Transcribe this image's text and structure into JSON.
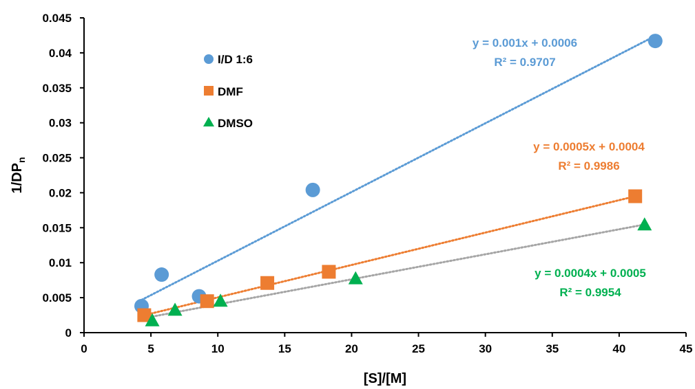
{
  "chart_data": {
    "type": "scatter",
    "xlabel": "[S]/[M]",
    "ylabel_main": "1/DP",
    "ylabel_sub": "n",
    "xlim": [
      0,
      45
    ],
    "ylim": [
      0,
      0.045
    ],
    "x_ticks": [
      "0",
      "5",
      "10",
      "15",
      "20",
      "25",
      "30",
      "35",
      "40",
      "45"
    ],
    "y_ticks": [
      "0",
      "0.005",
      "0.01",
      "0.015",
      "0.02",
      "0.025",
      "0.03",
      "0.035",
      "0.04",
      "0.045"
    ],
    "grid": false,
    "legend_position": "upper-left",
    "series": [
      {
        "name": "I/D 1:6",
        "marker": "circle",
        "color": "#5B9BD5",
        "trend_color": "#5B9BD5",
        "x": [
          4.3,
          5.8,
          8.6,
          17.1,
          42.7
        ],
        "y": [
          0.0038,
          0.0083,
          0.0052,
          0.0204,
          0.0417
        ],
        "trend_range": [
          4.3,
          42.7
        ],
        "equation": "y = 0.001x + 0.0006",
        "r2": "R² = 0.9707"
      },
      {
        "name": "DMF",
        "marker": "square",
        "color": "#ED7D31",
        "trend_color": "#ED7D31",
        "x": [
          4.5,
          9.2,
          13.7,
          18.3,
          41.2
        ],
        "y": [
          0.0025,
          0.0045,
          0.0071,
          0.0087,
          0.0195
        ],
        "trend_range": [
          4.5,
          41.2
        ],
        "equation": "y = 0.0005x + 0.0004",
        "r2": "R² = 0.9986"
      },
      {
        "name": "DMSO",
        "marker": "triangle",
        "color": "#00B050",
        "trend_color": "#A5A5A5",
        "x": [
          5.1,
          6.8,
          10.2,
          20.3,
          41.9
        ],
        "y": [
          0.0017,
          0.0032,
          0.0045,
          0.0077,
          0.0154
        ],
        "trend_range": [
          5.1,
          41.9
        ],
        "equation": "y = 0.0004x + 0.0005",
        "r2": "R² = 0.9954"
      }
    ]
  }
}
